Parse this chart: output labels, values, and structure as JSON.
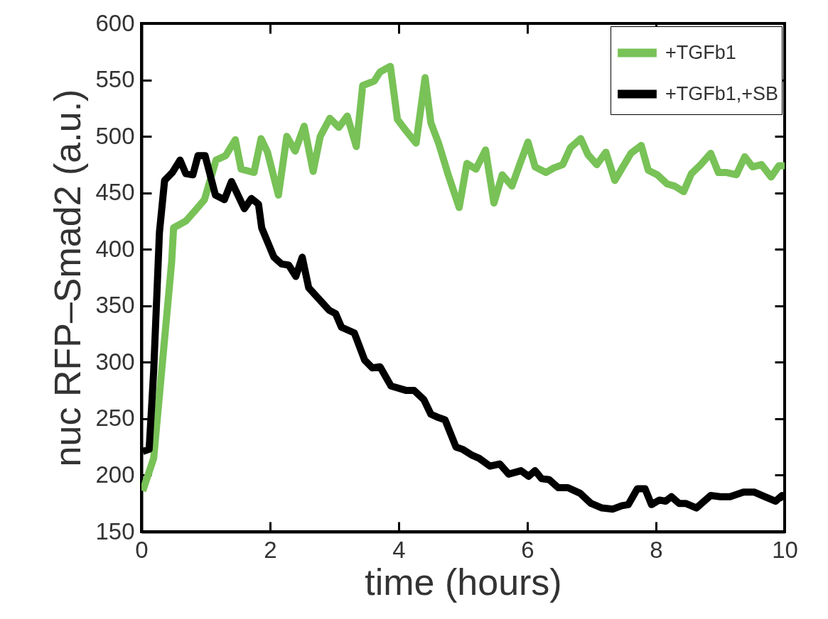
{
  "chart_data": {
    "type": "line",
    "xlabel": "time (hours)",
    "ylabel": "nuc RFP–Smad2 (a.u.)",
    "xlim": [
      0,
      10
    ],
    "xticks": [
      0,
      2,
      4,
      6,
      8,
      10
    ],
    "ylim": [
      150,
      600
    ],
    "yticks": [
      150,
      200,
      250,
      300,
      350,
      400,
      450,
      500,
      550,
      600
    ],
    "legend": "top right",
    "series": [
      {
        "name": "+TGFb1",
        "color": "#78c257",
        "x": [
          0.02,
          0.19,
          0.47,
          0.5,
          0.69,
          0.86,
          0.98,
          1.16,
          1.31,
          1.46,
          1.55,
          1.75,
          1.86,
          1.96,
          2.13,
          2.26,
          2.39,
          2.53,
          2.67,
          2.78,
          2.93,
          3.07,
          3.2,
          3.34,
          3.44,
          3.62,
          3.71,
          3.87,
          3.98,
          4.1,
          4.27,
          4.41,
          4.5,
          4.62,
          4.77,
          4.94,
          5.06,
          5.2,
          5.35,
          5.48,
          5.61,
          5.76,
          5.88,
          6.01,
          6.12,
          6.29,
          6.41,
          6.55,
          6.67,
          6.83,
          6.94,
          7.08,
          7.22,
          7.36,
          7.61,
          7.77,
          7.88,
          8.02,
          8.17,
          8.29,
          8.43,
          8.55,
          8.68,
          8.85,
          8.97,
          9.1,
          9.25,
          9.38,
          9.5,
          9.64,
          9.79,
          9.91,
          10
        ],
        "values": [
          186,
          215,
          389,
          419,
          425,
          436,
          444,
          479,
          483,
          497,
          471,
          468,
          498,
          486,
          448,
          500,
          487,
          509,
          469,
          500,
          516,
          508,
          518,
          491,
          545,
          549,
          557,
          562,
          515,
          506,
          494,
          552,
          512,
          494,
          466,
          437,
          476,
          471,
          488,
          441,
          466,
          456,
          475,
          495,
          473,
          468,
          472,
          475,
          490,
          498,
          484,
          475,
          486,
          461,
          485,
          492,
          470,
          466,
          458,
          456,
          451,
          467,
          474,
          485,
          468,
          468,
          466,
          482,
          473,
          475,
          464,
          474,
          474
        ]
      },
      {
        "name": "+TGFb1,+SB",
        "color": "#000000",
        "x": [
          0.02,
          0.12,
          0.19,
          0.28,
          0.36,
          0.48,
          0.6,
          0.69,
          0.8,
          0.88,
          0.99,
          1.15,
          1.29,
          1.4,
          1.6,
          1.71,
          1.82,
          1.87,
          2.06,
          2.18,
          2.29,
          2.4,
          2.5,
          2.6,
          2.92,
          3.02,
          3.11,
          3.31,
          3.47,
          3.59,
          3.71,
          3.88,
          4.12,
          4.24,
          4.39,
          4.5,
          4.62,
          4.72,
          4.89,
          4.99,
          5.13,
          5.25,
          5.42,
          5.57,
          5.71,
          5.9,
          6.02,
          6.12,
          6.22,
          6.34,
          6.48,
          6.63,
          6.82,
          6.99,
          7.16,
          7.33,
          7.47,
          7.57,
          7.71,
          7.83,
          7.93,
          8.05,
          8.15,
          8.24,
          8.36,
          8.46,
          8.63,
          8.85,
          9,
          9.15,
          9.36,
          9.53,
          9.69,
          9.86,
          9.96,
          10
        ],
        "values": [
          221,
          223,
          292,
          415,
          461,
          468,
          479,
          467,
          466,
          483,
          483,
          448,
          444,
          460,
          436,
          445,
          440,
          419,
          393,
          387,
          386,
          376,
          393,
          366,
          346,
          343,
          331,
          326,
          302,
          295,
          296,
          279,
          275,
          275,
          267,
          254,
          251,
          249,
          225,
          223,
          218,
          215,
          208,
          210,
          201,
          204,
          199,
          204,
          197,
          196,
          189,
          189,
          184,
          175,
          171,
          170,
          173,
          174,
          188,
          188,
          174,
          178,
          177,
          181,
          175,
          175,
          171,
          182,
          181,
          181,
          185,
          185,
          181,
          177,
          182,
          179
        ]
      }
    ]
  }
}
